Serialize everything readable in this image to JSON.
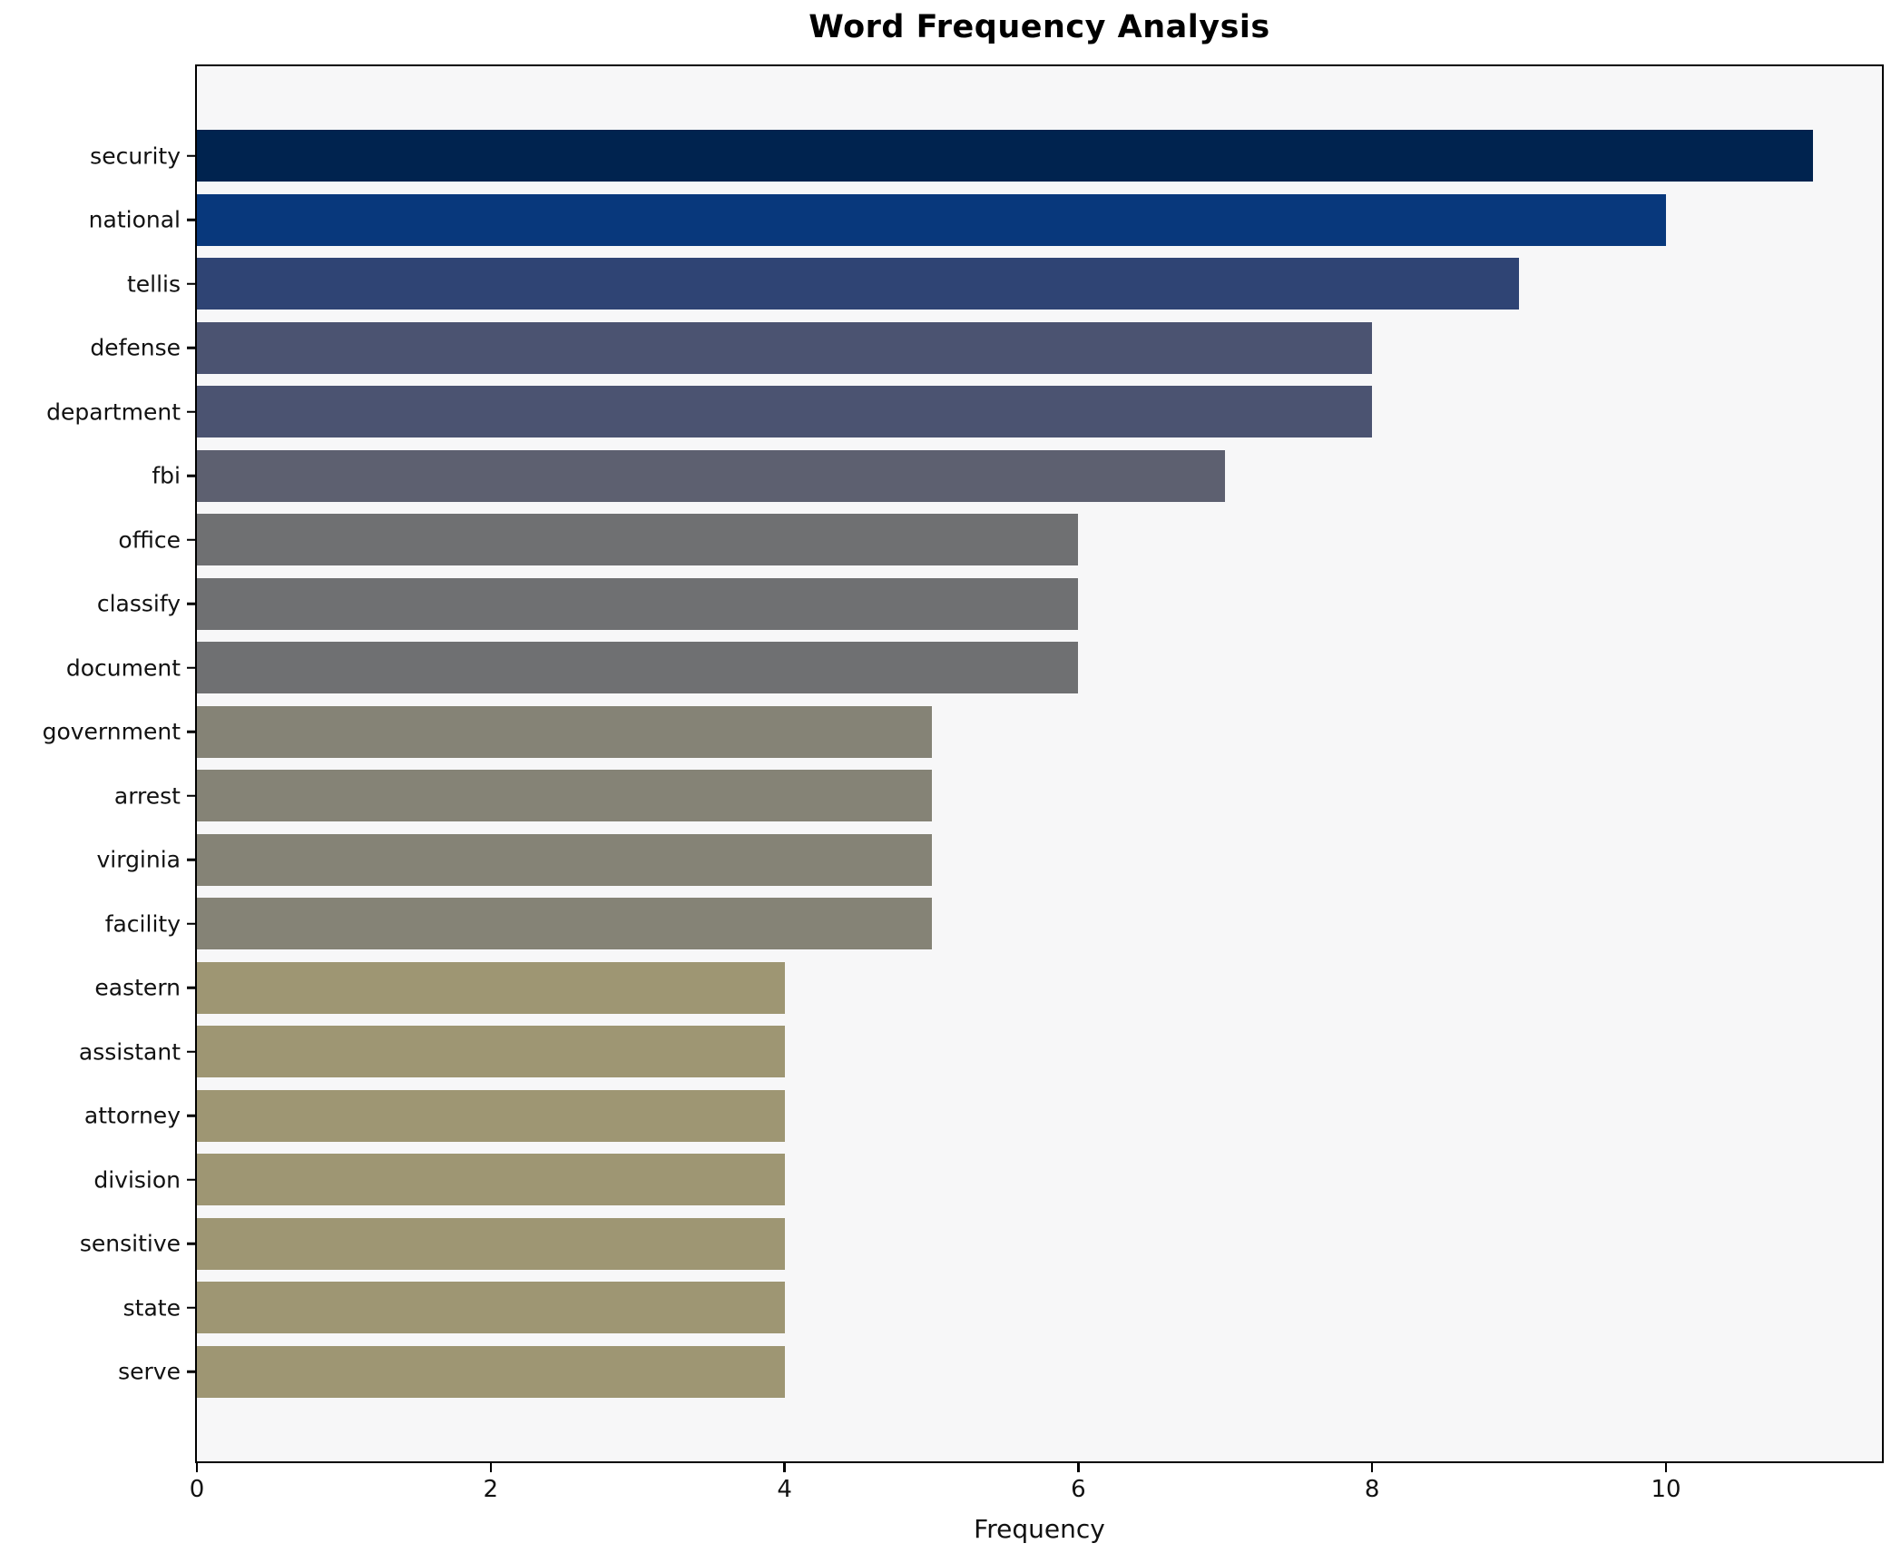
{
  "chart_data": {
    "type": "bar",
    "orientation": "horizontal",
    "title": "Word Frequency Analysis",
    "xlabel": "Frequency",
    "ylabel": "",
    "categories": [
      "security",
      "national",
      "tellis",
      "defense",
      "department",
      "fbi",
      "office",
      "classify",
      "document",
      "government",
      "arrest",
      "virginia",
      "facility",
      "eastern",
      "assistant",
      "attorney",
      "division",
      "sensitive",
      "state",
      "serve"
    ],
    "values": [
      11,
      10,
      9,
      8,
      8,
      7,
      6,
      6,
      6,
      5,
      5,
      5,
      5,
      4,
      4,
      4,
      4,
      4,
      4,
      4
    ],
    "bar_colors": [
      "#00234f",
      "#08387c",
      "#2f4474",
      "#4b5371",
      "#4b5371",
      "#5d6070",
      "#6f7072",
      "#6f7072",
      "#6f7072",
      "#858376",
      "#858376",
      "#858376",
      "#858376",
      "#9e9673",
      "#9e9673",
      "#9e9673",
      "#9e9673",
      "#9e9673",
      "#9e9673",
      "#9e9673"
    ],
    "xticks": [
      0,
      2,
      4,
      6,
      8,
      10
    ],
    "xlim": [
      0,
      11.47
    ],
    "grid": false,
    "legend": null,
    "plot_background": "#f7f7f8",
    "figure_background": "#ffffff",
    "spine_color": "#000000"
  }
}
